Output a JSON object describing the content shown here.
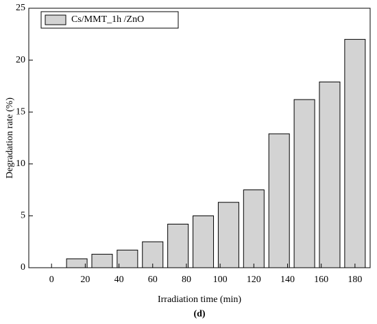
{
  "chart_data": {
    "type": "bar",
    "subtitle": "(d)",
    "x_label": "Irradiation time (min)",
    "y_label": "Degradation rate (%)",
    "x": [
      0,
      15,
      30,
      45,
      60,
      75,
      90,
      105,
      120,
      135,
      150,
      165,
      180
    ],
    "series": [
      {
        "name": "Cs/MMT_1h /ZnO",
        "color": "#d3d3d3",
        "values": [
          0,
          0.86,
          1.3,
          1.7,
          2.5,
          4.2,
          5.0,
          6.3,
          7.5,
          12.9,
          16.2,
          17.9,
          22.0
        ]
      }
    ],
    "xlim": [
      -13.5,
      189
    ],
    "xticks": [
      0,
      20,
      40,
      60,
      80,
      100,
      120,
      140,
      160,
      180
    ],
    "ylim": [
      0,
      25
    ],
    "yticks": [
      0,
      5,
      10,
      15,
      20,
      25
    ],
    "legend": "upper left"
  }
}
